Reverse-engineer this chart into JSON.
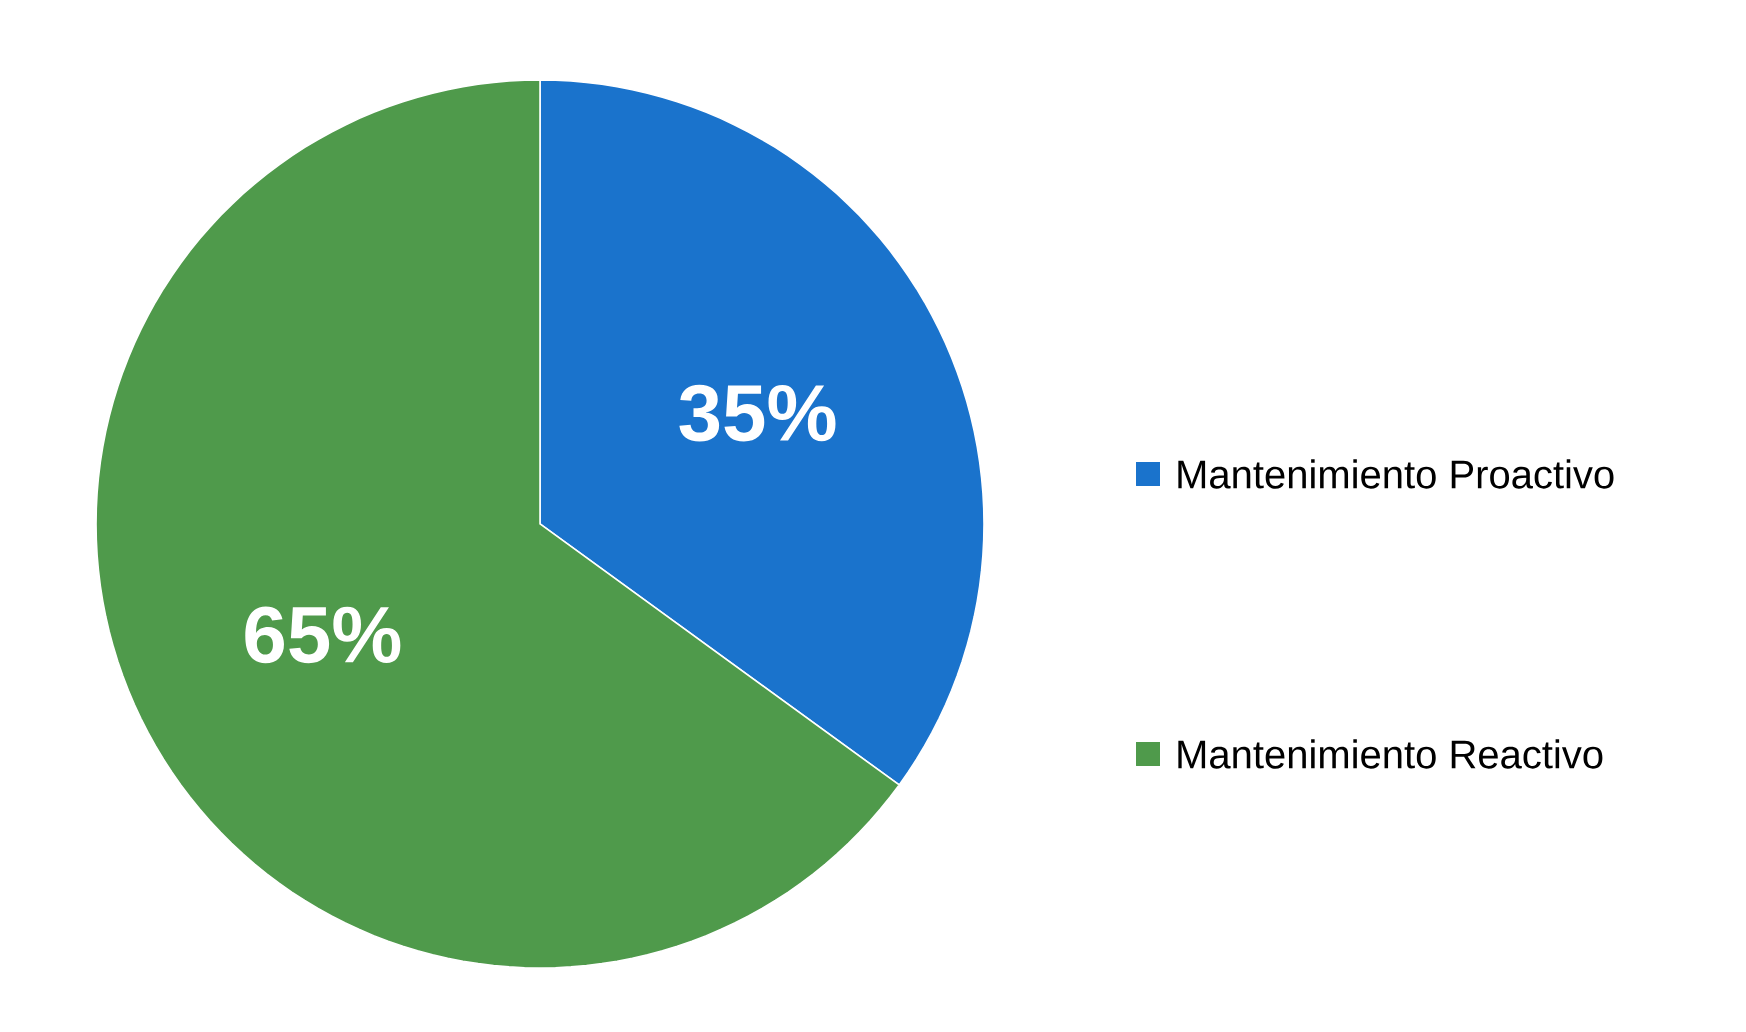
{
  "chart_data": {
    "type": "pie",
    "categories": [
      "Mantenimiento  Proactivo",
      "Mantenimiento  Reactivo"
    ],
    "values": [
      35,
      65
    ],
    "value_labels": [
      "35%",
      "65%"
    ],
    "colors": [
      "#1a73cc",
      "#4f9a4b"
    ],
    "legend": "right"
  }
}
